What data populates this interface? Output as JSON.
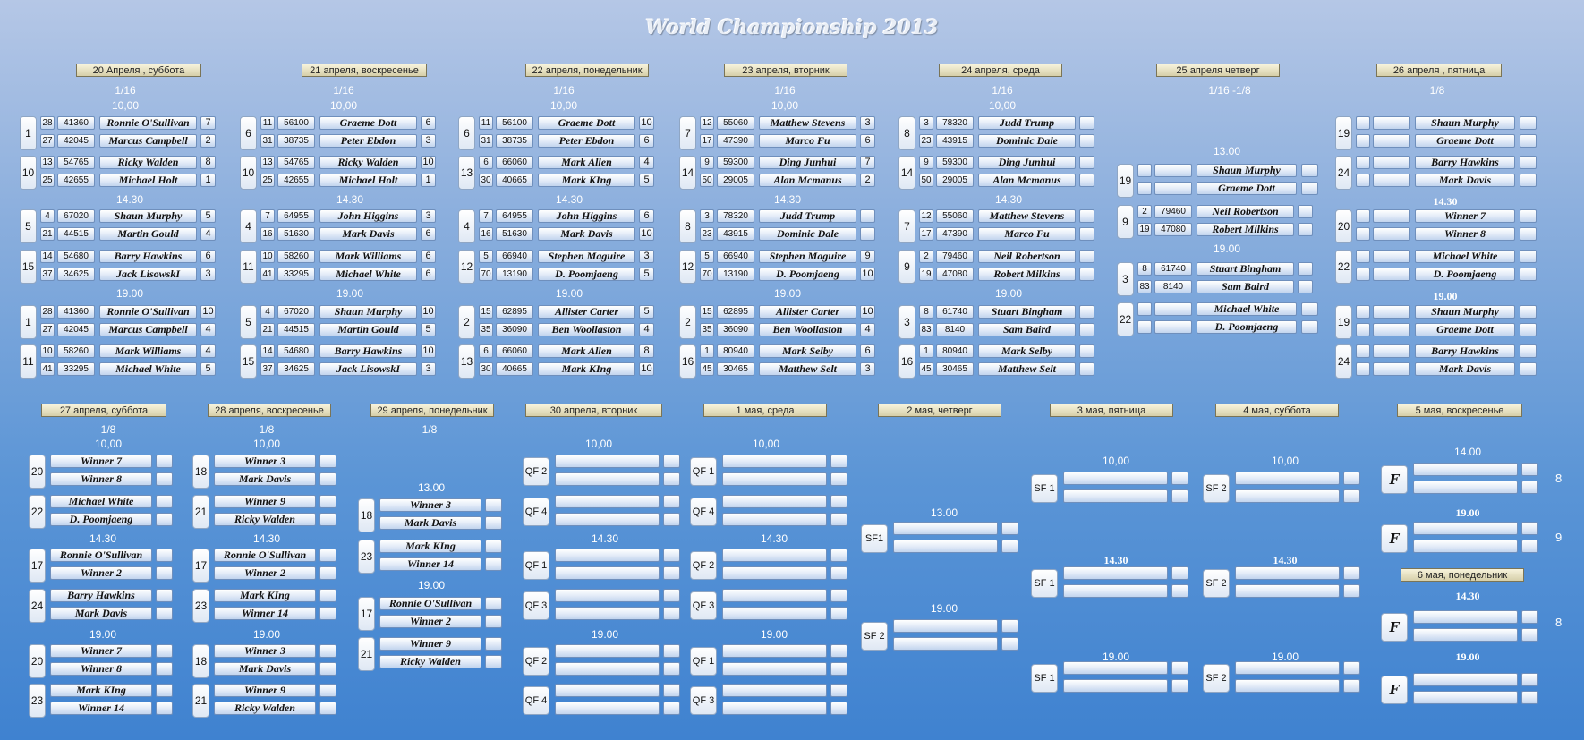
{
  "title": "World Championship 2013",
  "dates_top": [
    "20 Апреля , суббота",
    "21 апреля, воскресенье",
    "22 апреля, понедельник",
    "23 апреля, вторник",
    "24 апреля, среда",
    "25 апреля четверг",
    "26 апреля , пятница"
  ],
  "dates_bottom": [
    "27 апреля, суббота",
    "28 апреля, воскресенье",
    "29 апреля, понедельник",
    "30 апреля, вторник",
    "1 мая, среда",
    "2 мая, четверг",
    "3 мая, пятница",
    "4 мая, суббота",
    "5 мая, воскресенье",
    "6 мая, понедельник"
  ],
  "rounds": {
    "r16": "1/16",
    "r16b": "1/16 -1/8",
    "r8": "1/8"
  },
  "times": {
    "t10": "10,00",
    "t13": "13.00",
    "t1430": "14.30",
    "t19": "19.00",
    "t14": "14.00",
    "t10b": "10,00"
  },
  "side_scores": [
    "8",
    "9",
    "8"
  ],
  "matches_top": [
    {
      "n": "1",
      "r": [
        [
          "28",
          "41360",
          "Ronnie O'Sullivan",
          "7"
        ],
        [
          "27",
          "42045",
          "Marcus Campbell",
          "2"
        ]
      ]
    },
    {
      "n": "10",
      "r": [
        [
          "13",
          "54765",
          "Ricky Walden",
          "8"
        ],
        [
          "25",
          "42655",
          "Michael Holt",
          "1"
        ]
      ]
    },
    {
      "n": "5",
      "r": [
        [
          "4",
          "67020",
          "Shaun Murphy",
          "5"
        ],
        [
          "21",
          "44515",
          "Martin Gould",
          "4"
        ]
      ]
    },
    {
      "n": "15",
      "r": [
        [
          "14",
          "54680",
          "Barry Hawkins",
          "6"
        ],
        [
          "37",
          "34625",
          "Jack LisowskI",
          "3"
        ]
      ]
    },
    {
      "n": "1",
      "r": [
        [
          "28",
          "41360",
          "Ronnie O'Sullivan",
          "10"
        ],
        [
          "27",
          "42045",
          "Marcus Campbell",
          "4"
        ]
      ]
    },
    {
      "n": "11",
      "r": [
        [
          "10",
          "58260",
          "Mark Williams",
          "4"
        ],
        [
          "41",
          "33295",
          "Michael White",
          "5"
        ]
      ]
    },
    {
      "n": "6",
      "r": [
        [
          "11",
          "56100",
          "Graeme Dott",
          "6"
        ],
        [
          "31",
          "38735",
          "Peter Ebdon",
          "3"
        ]
      ]
    },
    {
      "n": "10",
      "r": [
        [
          "13",
          "54765",
          "Ricky Walden",
          "10"
        ],
        [
          "25",
          "42655",
          "Michael Holt",
          "1"
        ]
      ]
    },
    {
      "n": "4",
      "r": [
        [
          "7",
          "64955",
          "John Higgins",
          "3"
        ],
        [
          "16",
          "51630",
          "Mark Davis",
          "6"
        ]
      ]
    },
    {
      "n": "11",
      "r": [
        [
          "10",
          "58260",
          "Mark Williams",
          "6"
        ],
        [
          "41",
          "33295",
          "Michael White",
          "6"
        ]
      ]
    },
    {
      "n": "5",
      "r": [
        [
          "4",
          "67020",
          "Shaun Murphy",
          "10"
        ],
        [
          "21",
          "44515",
          "Martin Gould",
          "5"
        ]
      ]
    },
    {
      "n": "15",
      "r": [
        [
          "14",
          "54680",
          "Barry Hawkins",
          "10"
        ],
        [
          "37",
          "34625",
          "Jack LisowskI",
          "3"
        ]
      ]
    },
    {
      "n": "6",
      "r": [
        [
          "11",
          "56100",
          "Graeme Dott",
          "10"
        ],
        [
          "31",
          "38735",
          "Peter Ebdon",
          "6"
        ]
      ]
    },
    {
      "n": "13",
      "r": [
        [
          "6",
          "66060",
          "Mark Allen",
          "4"
        ],
        [
          "30",
          "40665",
          "Mark KIng",
          "5"
        ]
      ]
    },
    {
      "n": "4",
      "r": [
        [
          "7",
          "64955",
          "John Higgins",
          "6"
        ],
        [
          "16",
          "51630",
          "Mark Davis",
          "10"
        ]
      ]
    },
    {
      "n": "12",
      "r": [
        [
          "5",
          "66940",
          "Stephen Maguire",
          "3"
        ],
        [
          "70",
          "13190",
          "D. Poomjaeng",
          "5"
        ]
      ]
    },
    {
      "n": "2",
      "r": [
        [
          "15",
          "62895",
          "Allister Carter",
          "5"
        ],
        [
          "35",
          "36090",
          "Ben Woollaston",
          "4"
        ]
      ]
    },
    {
      "n": "13",
      "r": [
        [
          "6",
          "66060",
          "Mark Allen",
          "8"
        ],
        [
          "30",
          "40665",
          "Mark KIng",
          "10"
        ]
      ]
    },
    {
      "n": "7",
      "r": [
        [
          "12",
          "55060",
          "Matthew Stevens",
          "3"
        ],
        [
          "17",
          "47390",
          "Marco Fu",
          "6"
        ]
      ]
    },
    {
      "n": "14",
      "r": [
        [
          "9",
          "59300",
          "Ding Junhui",
          "7"
        ],
        [
          "50",
          "29005",
          "Alan Mcmanus",
          "2"
        ]
      ]
    },
    {
      "n": "8",
      "r": [
        [
          "3",
          "78320",
          "Judd Trump",
          ""
        ],
        [
          "23",
          "43915",
          "Dominic Dale",
          ""
        ]
      ]
    },
    {
      "n": "12",
      "r": [
        [
          "5",
          "66940",
          "Stephen Maguire",
          "9"
        ],
        [
          "70",
          "13190",
          "D. Poomjaeng",
          "10"
        ]
      ]
    },
    {
      "n": "2",
      "r": [
        [
          "15",
          "62895",
          "Allister Carter",
          "10"
        ],
        [
          "35",
          "36090",
          "Ben Woollaston",
          "4"
        ]
      ]
    },
    {
      "n": "16",
      "r": [
        [
          "1",
          "80940",
          "Mark Selby",
          "6"
        ],
        [
          "45",
          "30465",
          "Matthew Selt",
          "3"
        ]
      ]
    },
    {
      "n": "8",
      "r": [
        [
          "3",
          "78320",
          "Judd Trump",
          ""
        ],
        [
          "23",
          "43915",
          "Dominic Dale",
          ""
        ]
      ]
    },
    {
      "n": "14",
      "r": [
        [
          "9",
          "59300",
          "Ding Junhui",
          ""
        ],
        [
          "50",
          "29005",
          "Alan Mcmanus",
          ""
        ]
      ]
    },
    {
      "n": "7",
      "r": [
        [
          "12",
          "55060",
          "Matthew Stevens",
          ""
        ],
        [
          "17",
          "47390",
          "Marco Fu",
          ""
        ]
      ]
    },
    {
      "n": "9",
      "r": [
        [
          "2",
          "79460",
          "Neil Robertson",
          ""
        ],
        [
          "19",
          "47080",
          "Robert Milkins",
          ""
        ]
      ]
    },
    {
      "n": "3",
      "r": [
        [
          "8",
          "61740",
          "Stuart Bingham",
          ""
        ],
        [
          "83",
          "8140",
          "Sam Baird",
          ""
        ]
      ]
    },
    {
      "n": "16",
      "r": [
        [
          "1",
          "80940",
          "Mark Selby",
          ""
        ],
        [
          "45",
          "30465",
          "Matthew Selt",
          ""
        ]
      ]
    },
    {
      "n": "19",
      "r": [
        [
          "",
          "",
          "Shaun Murphy",
          ""
        ],
        [
          "",
          "",
          "Graeme Dott",
          ""
        ]
      ]
    },
    {
      "n": "9",
      "r": [
        [
          "2",
          "79460",
          "Neil Robertson",
          ""
        ],
        [
          "19",
          "47080",
          "Robert Milkins",
          ""
        ]
      ]
    },
    {
      "n": "3",
      "r": [
        [
          "8",
          "61740",
          "Stuart Bingham",
          ""
        ],
        [
          "83",
          "8140",
          "Sam Baird",
          ""
        ]
      ]
    },
    {
      "n": "22",
      "r": [
        [
          "",
          "",
          "Michael White",
          ""
        ],
        [
          "",
          "",
          "D. Poomjaeng",
          ""
        ]
      ]
    },
    {
      "n": "19",
      "r": [
        [
          "",
          "",
          "Shaun Murphy",
          ""
        ],
        [
          "",
          "",
          "Graeme Dott",
          ""
        ]
      ]
    },
    {
      "n": "24",
      "r": [
        [
          "",
          "",
          "Barry Hawkins",
          ""
        ],
        [
          "",
          "",
          "Mark Davis",
          ""
        ]
      ]
    },
    {
      "n": "20",
      "r": [
        [
          "",
          "",
          "Winner 7",
          ""
        ],
        [
          "",
          "",
          "Winner 8",
          ""
        ]
      ]
    },
    {
      "n": "22",
      "r": [
        [
          "",
          "",
          "Michael White",
          ""
        ],
        [
          "",
          "",
          "D. Poomjaeng",
          ""
        ]
      ]
    },
    {
      "n": "19",
      "r": [
        [
          "",
          "",
          "Shaun Murphy",
          ""
        ],
        [
          "",
          "",
          "Graeme Dott",
          ""
        ]
      ]
    },
    {
      "n": "24",
      "r": [
        [
          "",
          "",
          "Barry Hawkins",
          ""
        ],
        [
          "",
          "",
          "Mark Davis",
          ""
        ]
      ]
    }
  ],
  "matches_bottom": [
    {
      "n": "20",
      "r": [
        [
          "Winner 7",
          ""
        ],
        [
          "Winner 8",
          ""
        ]
      ]
    },
    {
      "n": "22",
      "r": [
        [
          "Michael White",
          ""
        ],
        [
          "D. Poomjaeng",
          ""
        ]
      ]
    },
    {
      "n": "17",
      "r": [
        [
          "Ronnie O'Sullivan",
          ""
        ],
        [
          "Winner 2",
          ""
        ]
      ]
    },
    {
      "n": "24",
      "r": [
        [
          "Barry Hawkins",
          ""
        ],
        [
          "Mark Davis",
          ""
        ]
      ]
    },
    {
      "n": "20",
      "r": [
        [
          "Winner 7",
          ""
        ],
        [
          "Winner 8",
          ""
        ]
      ]
    },
    {
      "n": "23",
      "r": [
        [
          "Mark KIng",
          ""
        ],
        [
          "Winner 14",
          ""
        ]
      ]
    },
    {
      "n": "18",
      "r": [
        [
          "Winner 3",
          ""
        ],
        [
          "Mark Davis",
          ""
        ]
      ]
    },
    {
      "n": "21",
      "r": [
        [
          "Winner 9",
          ""
        ],
        [
          "Ricky Walden",
          ""
        ]
      ]
    },
    {
      "n": "17",
      "r": [
        [
          "Ronnie O'Sullivan",
          ""
        ],
        [
          "Winner 2",
          ""
        ]
      ]
    },
    {
      "n": "23",
      "r": [
        [
          "Mark KIng",
          ""
        ],
        [
          "Winner 14",
          ""
        ]
      ]
    },
    {
      "n": "18",
      "r": [
        [
          "Winner 3",
          ""
        ],
        [
          "Mark Davis",
          ""
        ]
      ]
    },
    {
      "n": "21",
      "r": [
        [
          "Winner 9",
          ""
        ],
        [
          "Ricky Walden",
          ""
        ]
      ]
    },
    {
      "n": "18",
      "r": [
        [
          "Winner 3",
          ""
        ],
        [
          "Mark Davis",
          ""
        ]
      ]
    },
    {
      "n": "23",
      "r": [
        [
          "Mark KIng",
          ""
        ],
        [
          "Winner 14",
          ""
        ]
      ]
    },
    {
      "n": "17",
      "r": [
        [
          "Ronnie O'Sullivan",
          ""
        ],
        [
          "Winner 2",
          ""
        ]
      ]
    },
    {
      "n": "21",
      "r": [
        [
          "Winner 9",
          ""
        ],
        [
          "Ricky Walden",
          ""
        ]
      ]
    },
    {
      "n": "QF 2",
      "r": [
        [
          "",
          ""
        ],
        [
          "",
          ""
        ]
      ]
    },
    {
      "n": "QF 4",
      "r": [
        [
          "",
          ""
        ],
        [
          "",
          ""
        ]
      ]
    },
    {
      "n": "QF 1",
      "r": [
        [
          "",
          ""
        ],
        [
          "",
          ""
        ]
      ]
    },
    {
      "n": "QF 3",
      "r": [
        [
          "",
          ""
        ],
        [
          "",
          ""
        ]
      ]
    },
    {
      "n": "QF 2",
      "r": [
        [
          "",
          ""
        ],
        [
          "",
          ""
        ]
      ]
    },
    {
      "n": "QF 4",
      "r": [
        [
          "",
          ""
        ],
        [
          "",
          ""
        ]
      ]
    },
    {
      "n": "QF 1",
      "r": [
        [
          "",
          ""
        ],
        [
          "",
          ""
        ]
      ]
    },
    {
      "n": "QF 4",
      "r": [
        [
          "",
          ""
        ],
        [
          "",
          ""
        ]
      ]
    },
    {
      "n": "QF 2",
      "r": [
        [
          "",
          ""
        ],
        [
          "",
          ""
        ]
      ]
    },
    {
      "n": "QF 3",
      "r": [
        [
          "",
          ""
        ],
        [
          "",
          ""
        ]
      ]
    },
    {
      "n": "QF 1",
      "r": [
        [
          "",
          ""
        ],
        [
          "",
          ""
        ]
      ]
    },
    {
      "n": "QF 3",
      "r": [
        [
          "",
          ""
        ],
        [
          "",
          ""
        ]
      ]
    },
    {
      "n": "SF1",
      "r": [
        [
          "",
          ""
        ],
        [
          "",
          ""
        ]
      ]
    },
    {
      "n": "SF 2",
      "r": [
        [
          "",
          ""
        ],
        [
          "",
          ""
        ]
      ]
    },
    {
      "n": "SF 1",
      "r": [
        [
          "",
          ""
        ],
        [
          "",
          ""
        ]
      ]
    },
    {
      "n": "SF 2",
      "r": [
        [
          "",
          ""
        ],
        [
          "",
          ""
        ]
      ]
    },
    {
      "n": "SF 1",
      "r": [
        [
          "",
          ""
        ],
        [
          "",
          ""
        ]
      ]
    },
    {
      "n": "SF 2",
      "r": [
        [
          "",
          ""
        ],
        [
          "",
          ""
        ]
      ]
    },
    {
      "n": "SF 1",
      "r": [
        [
          "",
          ""
        ],
        [
          "",
          ""
        ]
      ]
    },
    {
      "n": "SF 2",
      "r": [
        [
          "",
          ""
        ],
        [
          "",
          ""
        ]
      ]
    },
    {
      "n": "F",
      "r": [
        [
          "",
          ""
        ],
        [
          "",
          ""
        ]
      ]
    },
    {
      "n": "F",
      "r": [
        [
          "",
          ""
        ],
        [
          "",
          ""
        ]
      ]
    },
    {
      "n": "F",
      "r": [
        [
          "",
          ""
        ],
        [
          "",
          ""
        ]
      ]
    },
    {
      "n": "F",
      "r": [
        [
          "",
          ""
        ],
        [
          "",
          ""
        ]
      ]
    }
  ]
}
